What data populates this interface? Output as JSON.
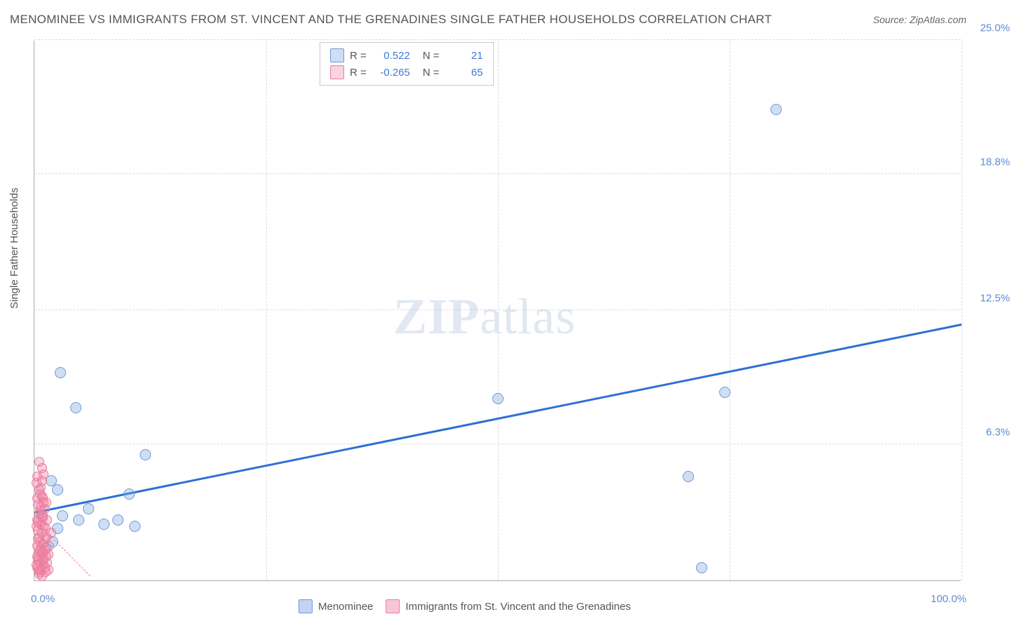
{
  "title": "MENOMINEE VS IMMIGRANTS FROM ST. VINCENT AND THE GRENADINES SINGLE FATHER HOUSEHOLDS CORRELATION CHART",
  "source": "Source: ZipAtlas.com",
  "y_axis_label": "Single Father Households",
  "watermark_bold": "ZIP",
  "watermark_light": "atlas",
  "chart": {
    "type": "scatter",
    "xlim": [
      0,
      100
    ],
    "ylim": [
      0,
      25
    ],
    "x_ticks": [
      0,
      25,
      50,
      75,
      100
    ],
    "x_tick_labels": [
      "0.0%",
      "",
      "",
      "",
      "100.0%"
    ],
    "y_ticks": [
      6.3,
      12.5,
      18.8,
      25.0
    ],
    "y_tick_labels": [
      "6.3%",
      "12.5%",
      "18.8%",
      "25.0%"
    ],
    "grid_color": "#dddddd",
    "background_color": "#ffffff",
    "axis_color": "#aaaaaa",
    "tick_label_color": "#5b8dd6",
    "tick_label_fontsize": 15,
    "series": [
      {
        "name": "Menominee",
        "color_fill": "rgba(120,160,220,0.35)",
        "color_stroke": "#6a9bd8",
        "marker_radius": 8,
        "R": "0.522",
        "N": "21",
        "trend": {
          "x1": 0,
          "y1": 3.1,
          "x2": 100,
          "y2": 11.8,
          "color": "#2e6fd6",
          "width": 3,
          "dash": "solid"
        },
        "points": [
          [
            2.8,
            9.6
          ],
          [
            4.5,
            8.0
          ],
          [
            1.8,
            4.6
          ],
          [
            2.5,
            4.2
          ],
          [
            4.8,
            2.8
          ],
          [
            7.5,
            2.6
          ],
          [
            9.0,
            2.8
          ],
          [
            10.2,
            4.0
          ],
          [
            10.8,
            2.5
          ],
          [
            12.0,
            5.8
          ],
          [
            2.0,
            1.8
          ],
          [
            2.5,
            2.4
          ],
          [
            0.8,
            3.0
          ],
          [
            1.2,
            1.5
          ],
          [
            3.0,
            3.0
          ],
          [
            70.5,
            4.8
          ],
          [
            74.5,
            8.7
          ],
          [
            72.0,
            0.6
          ],
          [
            80.0,
            21.8
          ],
          [
            50.0,
            8.4
          ],
          [
            5.8,
            3.3
          ]
        ]
      },
      {
        "name": "Immigrants from St. Vincent and the Grenadines",
        "color_fill": "rgba(240,130,160,0.35)",
        "color_stroke": "#e87da0",
        "marker_radius": 7,
        "R": "-0.265",
        "N": "65",
        "trend": {
          "x1": 0,
          "y1": 2.8,
          "x2": 6,
          "y2": 0.2,
          "color": "#e87da0",
          "width": 1.5,
          "dash": "dashed"
        },
        "points": [
          [
            0.3,
            4.8
          ],
          [
            0.5,
            4.2
          ],
          [
            0.8,
            3.9
          ],
          [
            0.4,
            3.5
          ],
          [
            0.6,
            3.2
          ],
          [
            0.9,
            3.0
          ],
          [
            0.3,
            2.8
          ],
          [
            0.7,
            2.6
          ],
          [
            1.0,
            2.5
          ],
          [
            0.4,
            2.3
          ],
          [
            0.8,
            2.2
          ],
          [
            0.5,
            2.0
          ],
          [
            1.2,
            1.9
          ],
          [
            0.6,
            1.8
          ],
          [
            0.9,
            1.7
          ],
          [
            0.3,
            1.6
          ],
          [
            0.7,
            1.5
          ],
          [
            1.1,
            1.4
          ],
          [
            0.5,
            1.3
          ],
          [
            0.8,
            1.2
          ],
          [
            1.3,
            1.1
          ],
          [
            0.4,
            1.0
          ],
          [
            0.9,
            0.9
          ],
          [
            0.6,
            0.8
          ],
          [
            1.0,
            0.7
          ],
          [
            0.3,
            0.6
          ],
          [
            0.7,
            0.5
          ],
          [
            1.2,
            0.4
          ],
          [
            0.5,
            0.3
          ],
          [
            0.8,
            5.2
          ],
          [
            1.4,
            2.8
          ],
          [
            1.6,
            1.6
          ],
          [
            1.8,
            2.2
          ],
          [
            0.2,
            4.5
          ],
          [
            0.6,
            4.0
          ],
          [
            1.0,
            3.6
          ],
          [
            1.5,
            1.2
          ],
          [
            0.4,
            0.9
          ],
          [
            0.9,
            2.9
          ],
          [
            1.1,
            0.6
          ],
          [
            0.3,
            3.8
          ],
          [
            0.7,
            3.4
          ],
          [
            1.3,
            2.0
          ],
          [
            0.5,
            5.5
          ],
          [
            0.8,
            4.6
          ],
          [
            1.0,
            1.0
          ],
          [
            0.2,
            2.5
          ],
          [
            0.6,
            0.4
          ],
          [
            1.4,
            0.8
          ],
          [
            0.4,
            1.9
          ],
          [
            0.9,
            3.8
          ],
          [
            1.2,
            2.4
          ],
          [
            0.3,
            1.1
          ],
          [
            0.7,
            4.3
          ],
          [
            1.5,
            0.5
          ],
          [
            0.5,
            3.1
          ],
          [
            0.8,
            0.2
          ],
          [
            1.1,
            3.3
          ],
          [
            0.4,
            2.7
          ],
          [
            0.6,
            1.4
          ],
          [
            1.0,
            4.9
          ],
          [
            0.2,
            0.7
          ],
          [
            0.9,
            1.3
          ],
          [
            1.3,
            3.6
          ],
          [
            0.5,
            0.5
          ]
        ]
      }
    ]
  },
  "legend_bottom": [
    {
      "label": "Menominee",
      "fill": "rgba(120,160,220,0.45)",
      "stroke": "#6a9bd8"
    },
    {
      "label": "Immigrants from St. Vincent and the Grenadines",
      "fill": "rgba(240,130,160,0.45)",
      "stroke": "#e87da0"
    }
  ],
  "legend_top_labels": {
    "R": "R =",
    "N": "N ="
  }
}
